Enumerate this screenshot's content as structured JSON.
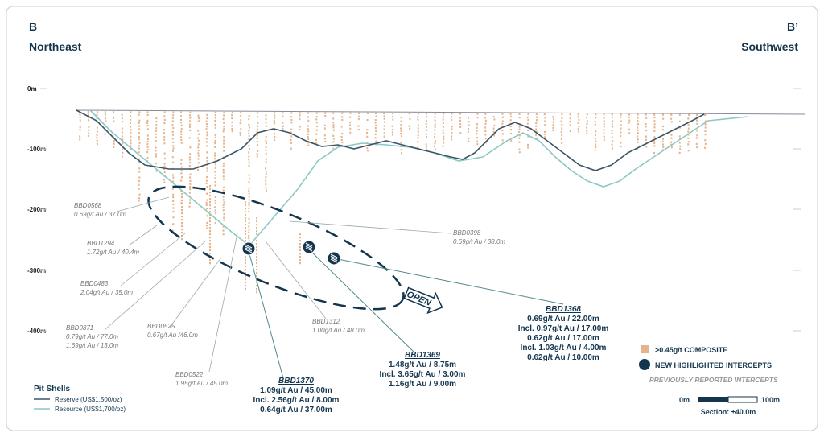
{
  "header": {
    "left_letter": "B",
    "left_direction": "Northeast",
    "right_letter": "B’",
    "right_direction": "Southwest"
  },
  "depth_labels": [
    "0m",
    "-100m",
    "-200m",
    "-300m",
    "-400m"
  ],
  "callouts": [
    {
      "lines": [
        "BBD0568",
        "0.69g/t Au / 37.0m"
      ]
    },
    {
      "lines": [
        "BBD1294",
        "1.72g/t Au / 40.4m"
      ]
    },
    {
      "lines": [
        "BBD0483",
        "2.04g/t Au / 35.0m"
      ]
    },
    {
      "lines": [
        "BBD0871",
        "0.79g/t Au / 77.0m",
        "1.69g/t Au / 13.0m"
      ]
    },
    {
      "lines": [
        "BBD0525",
        "0.67g/t Au /46.0m"
      ]
    },
    {
      "lines": [
        "BBD0522",
        "1.95g/t Au / 45.0m"
      ]
    },
    {
      "lines": [
        "BBD1312",
        "1.00g/t Au / 48.0m"
      ]
    },
    {
      "lines": [
        "BBD0398",
        "0.69g/t Au / 38.0m"
      ]
    }
  ],
  "highlights": [
    {
      "lines": [
        "BBD1370",
        "1.09g/t Au / 45.00m",
        "Incl. 2.56g/t Au / 8.00m",
        "0.64g/t Au / 37.00m"
      ]
    },
    {
      "lines": [
        "BBD1369",
        "1.48g/t Au / 8.75m",
        "Incl. 3.65g/t Au / 3.00m",
        "1.16g/t Au / 9.00m"
      ]
    },
    {
      "lines": [
        "BBD1368",
        "0.69g/t Au / 22.00m",
        "Incl. 0.97g/t Au / 17.00m",
        "0.62g/t Au / 17.00m",
        "Incl. 1.03g/t Au / 4.00m",
        "0.62g/t Au / 10.00m"
      ]
    }
  ],
  "open_label": "OPEN",
  "pit_legend": {
    "title": "Pit Shells",
    "reserve": "Reserve (US$1,500/oz)",
    "resource": "Resource (US$1,700/oz)"
  },
  "legend": {
    "composite": ">0.45g/t COMPOSITE",
    "new": "NEW HIGHLIGHTED INTERCEPTS",
    "previous": "PREVIOUSLY REPORTED INTERCEPTS"
  },
  "scale": {
    "start": "0m",
    "end": "100m",
    "section": "Section: ±40.0m"
  }
}
